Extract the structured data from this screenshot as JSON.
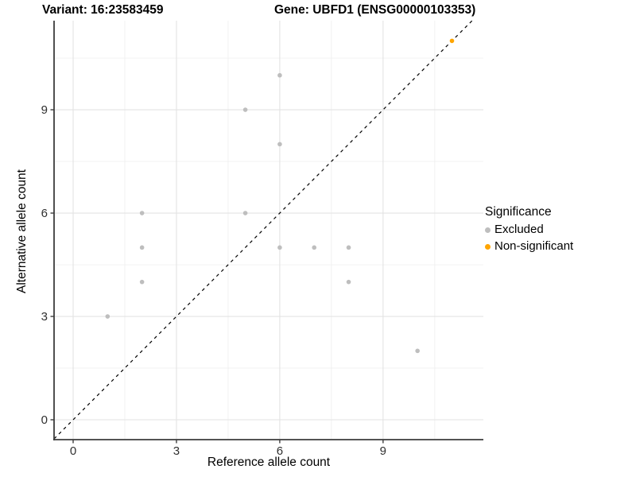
{
  "header": {
    "variant_title": "Variant: 16:23583459",
    "gene_title": "Gene: UBFD1 (ENSG00000103353)"
  },
  "chart_data": {
    "type": "scatter",
    "title_left": "Variant: 16:23583459",
    "title_right": "Gene: UBFD1 (ENSG00000103353)",
    "xlabel": "Reference allele count",
    "ylabel": "Alternative allele count",
    "xlim": [
      -0.554,
      11.912
    ],
    "ylim": [
      -0.577,
      11.586
    ],
    "x_major_ticks": [
      0,
      3,
      6,
      9
    ],
    "y_major_ticks": [
      0,
      3,
      6,
      9
    ],
    "x_minor_gridlines": [
      1.5,
      4.5,
      7.5,
      10.5
    ],
    "y_minor_gridlines": [
      1.5,
      4.5,
      7.5,
      10.5
    ],
    "grid": true,
    "identity_line": {
      "equation": "y = x",
      "style": "dashed",
      "color": "#000000"
    },
    "legend": {
      "title": "Significance",
      "position": "right"
    },
    "series": [
      {
        "name": "Excluded",
        "color": "#bebebe",
        "points": [
          [
            1,
            3
          ],
          [
            2,
            4
          ],
          [
            2,
            5
          ],
          [
            2,
            6
          ],
          [
            5,
            6
          ],
          [
            5,
            9
          ],
          [
            6,
            5
          ],
          [
            6,
            8
          ],
          [
            6,
            10
          ],
          [
            7,
            5
          ],
          [
            8,
            4
          ],
          [
            8,
            5
          ],
          [
            10,
            2
          ]
        ]
      },
      {
        "name": "Non-significant",
        "color": "#FFA500",
        "points": [
          [
            11,
            11
          ]
        ]
      }
    ],
    "style": {
      "point_radius": 2.8,
      "major_grid_color": "#e3e3e3",
      "minor_grid_color": "#f0f0f0",
      "axis_line_color": "#3c3c3c",
      "tick_label_color": "#303030"
    }
  }
}
